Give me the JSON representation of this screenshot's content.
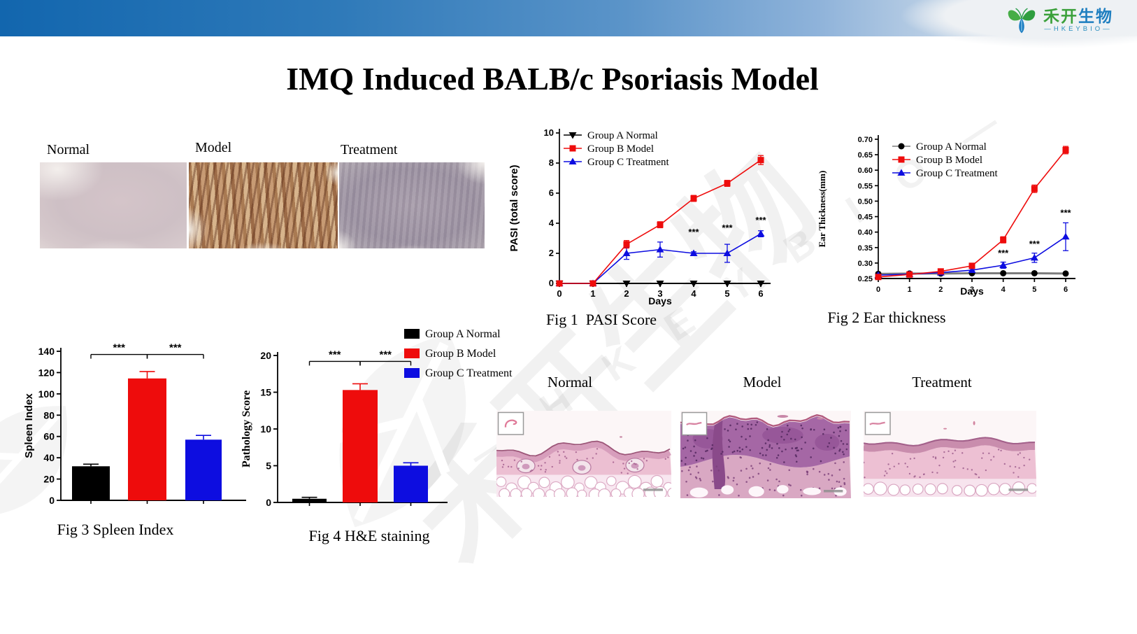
{
  "header": {
    "logo": {
      "cn1": "禾开",
      "cn2": "生物",
      "en": "—HKEYBIO—"
    }
  },
  "title": "IMQ Induced BALB/c Psoriasis Model",
  "photos": {
    "labels": [
      "Normal",
      "Model",
      "Treatment"
    ]
  },
  "histology": {
    "labels": [
      "Normal",
      "Model",
      "Treatment"
    ]
  },
  "captions": {
    "fig1": "Fig 1  PASI Score",
    "fig2": "Fig 2 Ear thickness",
    "fig3": "Fig 3 Spleen Index",
    "fig4": "Fig 4 H&E staining"
  },
  "groups": [
    {
      "name": "Group A Normal",
      "color": "#000000"
    },
    {
      "name": "Group B Model",
      "color": "#ee0c0c"
    },
    {
      "name": "Group C Treatment",
      "color": "#0d0de0"
    }
  ],
  "watermark": {
    "cn": "禾开生物",
    "en": "— H K E Y B I O —"
  },
  "chart_data": [
    {
      "id": "fig1",
      "type": "line",
      "title": "Fig 1  PASI Score",
      "xlabel": "Days",
      "ylabel": "PASI (total score)",
      "x": [
        0,
        1,
        2,
        3,
        4,
        5,
        6
      ],
      "ylim": [
        0,
        10
      ],
      "yticks": [
        0,
        2,
        4,
        6,
        8,
        10
      ],
      "ytick_decimals": 0,
      "legend": "inside-top-left",
      "series": [
        {
          "name": "Group A Normal",
          "marker": "triangle-down",
          "color": "#000000",
          "values": [
            0,
            0,
            0,
            0,
            0,
            0,
            0
          ],
          "errors": [
            0,
            0,
            0,
            0,
            0,
            0,
            0
          ]
        },
        {
          "name": "Group B Model",
          "marker": "square",
          "color": "#ee0c0c",
          "values": [
            0,
            0,
            2.6,
            3.9,
            5.65,
            6.65,
            8.2
          ],
          "errors": [
            0,
            0,
            0.25,
            0.2,
            0.2,
            0.2,
            0.3
          ]
        },
        {
          "name": "Group C Treatment",
          "marker": "triangle-up",
          "color": "#0d0de0",
          "values": [
            0,
            0,
            2.0,
            2.25,
            2.0,
            2.0,
            3.3
          ],
          "errors": [
            0,
            0,
            0.4,
            0.5,
            0.1,
            0.6,
            0.2
          ]
        }
      ],
      "annotations": [
        {
          "x": 4,
          "y": 3.2,
          "text": "***"
        },
        {
          "x": 5,
          "y": 3.5,
          "text": "***"
        },
        {
          "x": 6,
          "y": 4.0,
          "text": "***"
        }
      ]
    },
    {
      "id": "fig2",
      "type": "line",
      "title": "Fig 2 Ear thickness",
      "xlabel": "Days",
      "ylabel": "Ear Thickness(mm)",
      "x": [
        0,
        1,
        2,
        3,
        4,
        5,
        6
      ],
      "ylim": [
        0.25,
        0.7
      ],
      "yticks": [
        0.25,
        0.3,
        0.35,
        0.4,
        0.45,
        0.5,
        0.55,
        0.6,
        0.65,
        0.7
      ],
      "ytick_decimals": 2,
      "legend": "inside-top-left",
      "series": [
        {
          "name": "Group A Normal",
          "marker": "circle",
          "color": "#000000",
          "line_color": "#7d7d7d",
          "line_width": 3,
          "values": [
            0.265,
            0.266,
            0.266,
            0.267,
            0.267,
            0.267,
            0.266
          ],
          "errors": [
            0,
            0,
            0,
            0,
            0,
            0,
            0
          ]
        },
        {
          "name": "Group B Model",
          "marker": "square",
          "color": "#ee0c0c",
          "values": [
            0.255,
            0.263,
            0.273,
            0.291,
            0.375,
            0.54,
            0.665
          ],
          "errors": [
            0.004,
            0.003,
            0.003,
            0.006,
            0.01,
            0.012,
            0.012
          ]
        },
        {
          "name": "Group C Treatment",
          "marker": "triangle-up",
          "color": "#0d0de0",
          "values": [
            0.261,
            0.264,
            0.269,
            0.277,
            0.293,
            0.317,
            0.385
          ],
          "errors": [
            0.003,
            0.003,
            0.003,
            0.005,
            0.01,
            0.015,
            0.045
          ]
        }
      ],
      "annotations": [
        {
          "x": 4,
          "y": 0.322,
          "text": "***"
        },
        {
          "x": 5,
          "y": 0.352,
          "text": "***"
        },
        {
          "x": 6,
          "y": 0.452,
          "text": "***"
        }
      ]
    },
    {
      "id": "fig3",
      "type": "bar",
      "title": "Fig 3 Spleen Index",
      "ylabel": "Spleen Index",
      "categories": [
        "Group A Normal",
        "Group B Model",
        "Group C Treatment"
      ],
      "values": [
        32,
        114.5,
        57
      ],
      "errors": [
        2,
        6.5,
        4
      ],
      "bar_colors": [
        "#000000",
        "#ee0c0c",
        "#0d0de0"
      ],
      "ylim": [
        0,
        140
      ],
      "yticks": [
        0,
        20,
        40,
        60,
        80,
        100,
        120,
        140
      ],
      "ytick_decimals": 0,
      "sig_brackets": [
        {
          "from": 0,
          "to": 1,
          "label": "***",
          "y": 137
        },
        {
          "from": 1,
          "to": 2,
          "label": "***",
          "y": 137
        }
      ]
    },
    {
      "id": "fig4",
      "type": "bar",
      "title": "Fig 4 H&E staining",
      "ylabel": "Pathology Score",
      "categories": [
        "Group A Normal",
        "Group B Model",
        "Group C Treatment"
      ],
      "values": [
        0.5,
        15.3,
        5.0
      ],
      "errors": [
        0.2,
        0.85,
        0.4
      ],
      "bar_colors": [
        "#000000",
        "#ee0c0c",
        "#0d0de0"
      ],
      "ylim": [
        0,
        20
      ],
      "yticks": [
        0,
        5,
        10,
        15,
        20
      ],
      "ytick_decimals": 0,
      "legend": "outside-right",
      "sig_brackets": [
        {
          "from": 0,
          "to": 1,
          "label": "***",
          "y": 19.2
        },
        {
          "from": 1,
          "to": 2,
          "label": "***",
          "y": 19.2
        }
      ]
    }
  ]
}
